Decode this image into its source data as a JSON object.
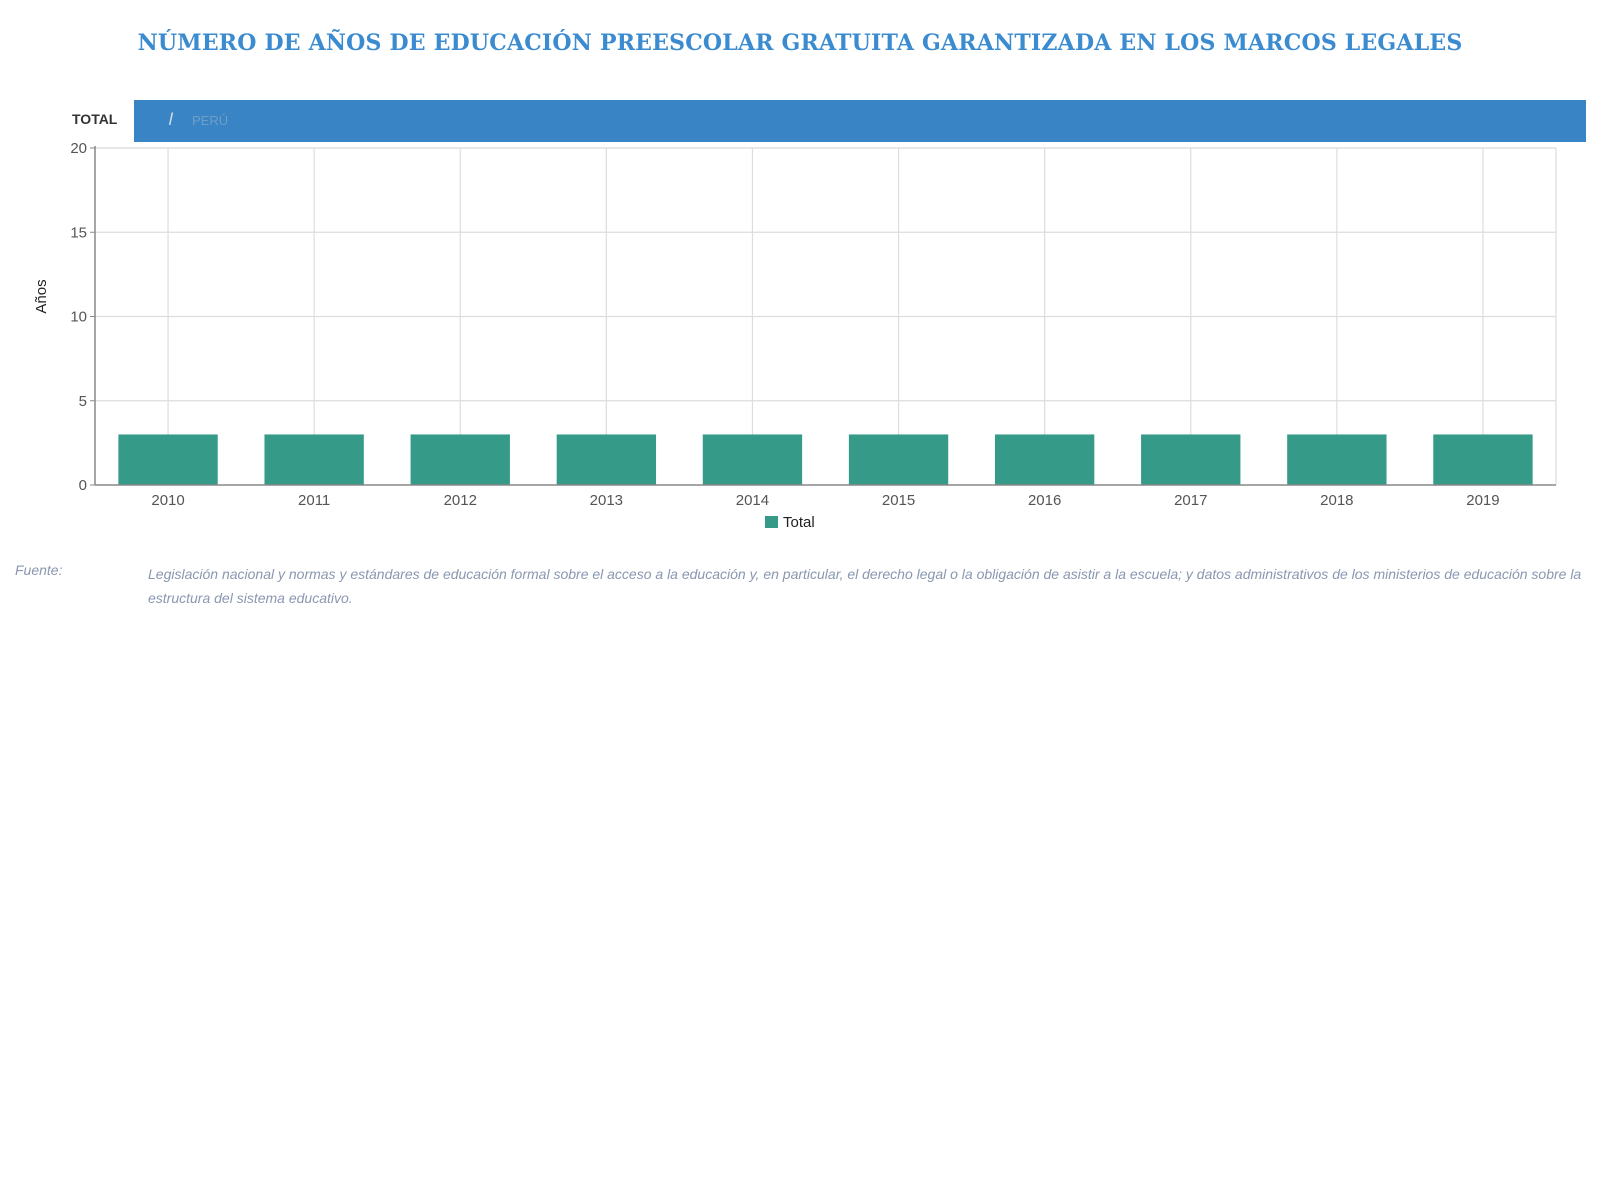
{
  "header": {
    "title": "NÚMERO DE AÑOS DE EDUCACIÓN PREESCOLAR GRATUITA GARANTIZADA EN LOS MARCOS LEGALES"
  },
  "tabs": {
    "active_label": "TOTAL",
    "faint_label": "PERÚ",
    "bar_color": "#3884c4"
  },
  "chart_data": {
    "type": "bar",
    "title": "",
    "xlabel": "",
    "ylabel": "Años",
    "ylim": [
      0,
      20
    ],
    "yticks": [
      0,
      5,
      10,
      15,
      20
    ],
    "grid": true,
    "legend_position": "bottom-center",
    "categories": [
      "2010",
      "2011",
      "2012",
      "2013",
      "2014",
      "2015",
      "2016",
      "2017",
      "2018",
      "2019"
    ],
    "series": [
      {
        "name": "Total",
        "color": "#369a89",
        "values": [
          3,
          3,
          3,
          3,
          3,
          3,
          3,
          3,
          3,
          3
        ]
      }
    ]
  },
  "source": {
    "label": "Fuente:",
    "text": "Legislación nacional y normas y estándares de educación formal sobre el acceso a la educación y, en particular, el derecho legal o la obligación de asistir a la escuela; y datos administrativos de los ministerios de educación sobre la estructura del sistema educativo."
  }
}
